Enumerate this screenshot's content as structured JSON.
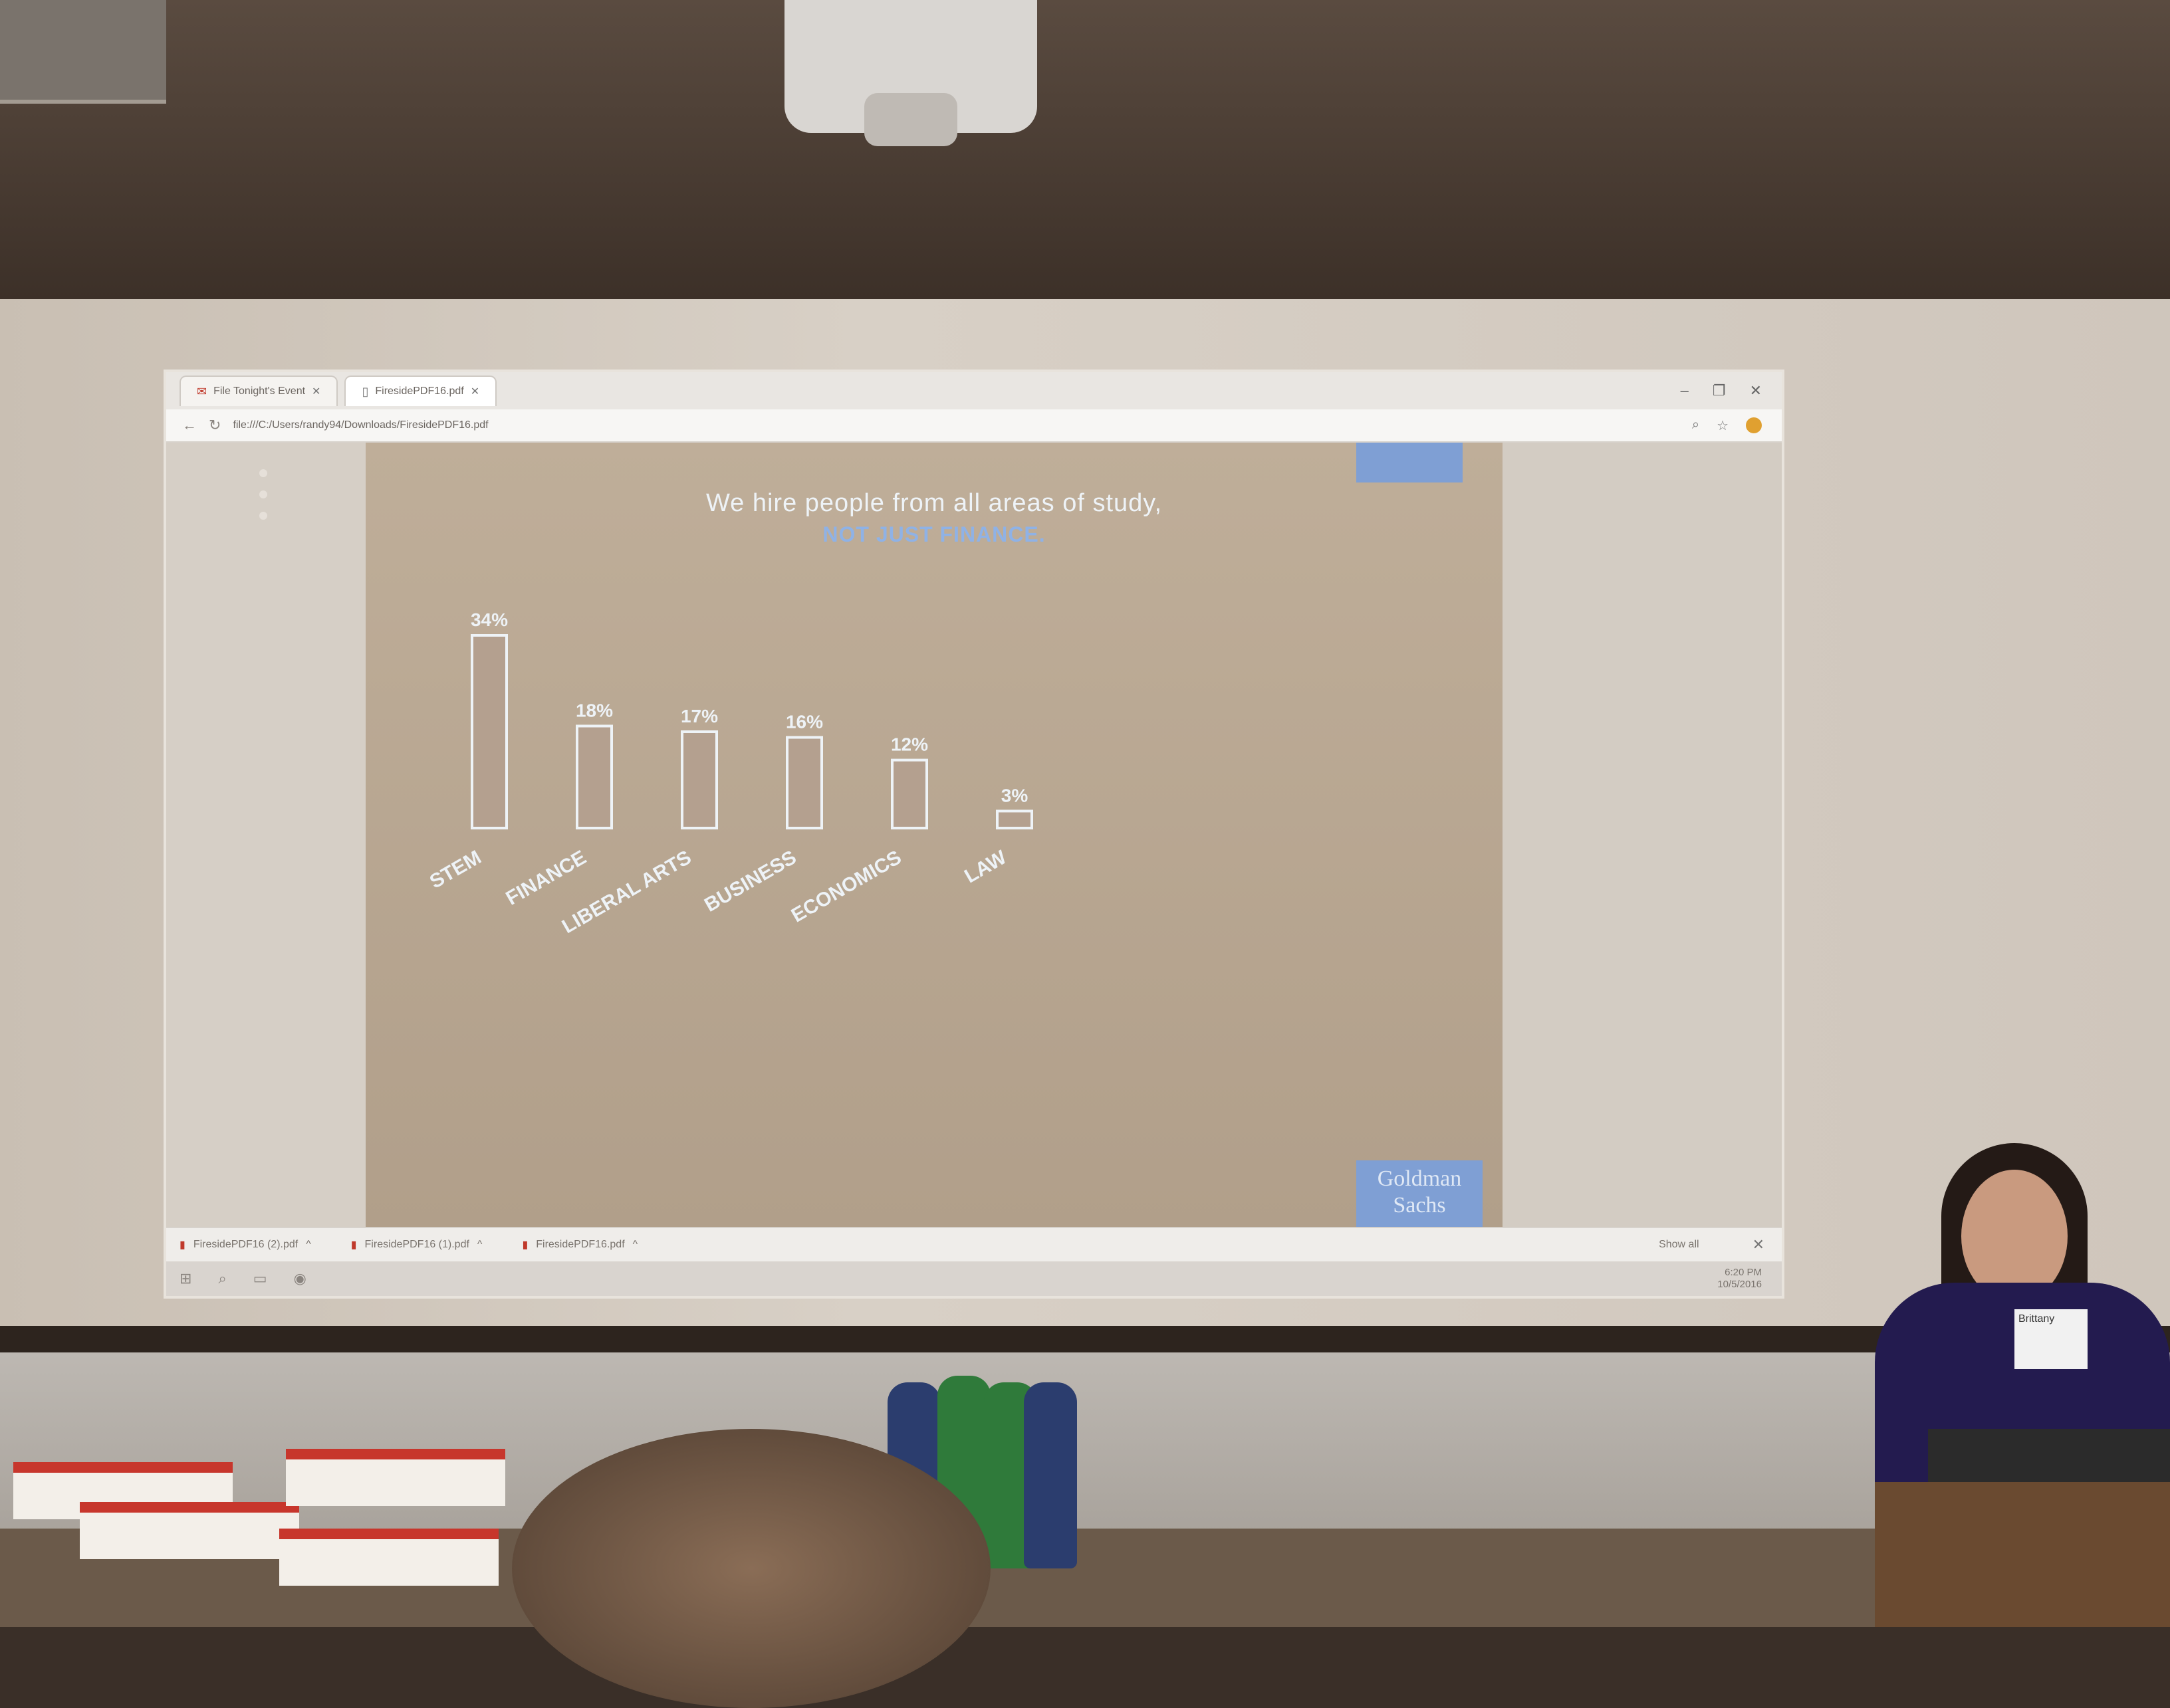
{
  "browser": {
    "tabs": [
      {
        "label": "File Tonight's Event",
        "icon": "gmail-icon"
      },
      {
        "label": "FiresidePDF16.pdf",
        "icon": "document-icon"
      }
    ],
    "address": "file:///C:/Users/randy94/Downloads/FiresidePDF16.pdf"
  },
  "slide": {
    "title": "We hire people from all areas of study,",
    "subtitle": "NOT JUST FINANCE.",
    "logo_text": "Goldman Sachs"
  },
  "chart_data": {
    "type": "bar",
    "categories": [
      "STEM",
      "FINANCE",
      "LIBERAL ARTS",
      "BUSINESS",
      "ECONOMICS",
      "LAW"
    ],
    "values": [
      34,
      18,
      17,
      16,
      12,
      3
    ],
    "data_labels": [
      "34%",
      "18%",
      "17%",
      "16%",
      "12%",
      "3%"
    ],
    "ylim": [
      0,
      34
    ],
    "grid": false,
    "colors": {
      "outline": "#eef3f7",
      "fill": "#b4a08f"
    }
  },
  "downloads": {
    "items": [
      "FiresidePDF16 (2).pdf",
      "FiresidePDF16 (1).pdf",
      "FiresidePDF16.pdf"
    ],
    "show_all": "Show all"
  },
  "taskbar": {
    "time": "6:20 PM",
    "date": "10/5/2016"
  },
  "presenter": {
    "badge_name": "Brittany"
  }
}
